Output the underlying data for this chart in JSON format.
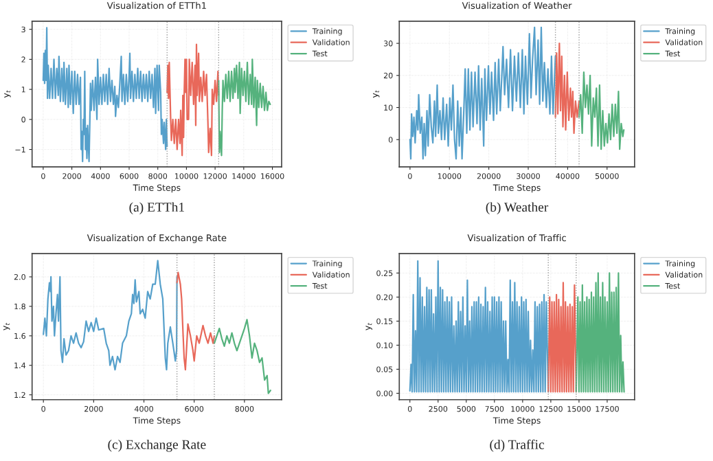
{
  "chart_data": [
    {
      "type": "line",
      "title": "Visualization of ETTh1",
      "xlabel": "Time Steps",
      "ylabel": "y$_{t}$",
      "annotations": [
        "(a) ETTh1"
      ],
      "xlim": [
        -776,
        16646
      ],
      "ylim": [
        -1.58,
        3.27
      ],
      "xticks": [
        0,
        2000,
        4000,
        6000,
        8000,
        10000,
        12000,
        14000,
        16000
      ],
      "yticks": [
        {
          "value": -1,
          "label": "−1"
        },
        0,
        1,
        2,
        3
      ],
      "grid": true,
      "legend": "top right",
      "line_style": "solid",
      "ref_lines": [
        {
          "axis": "x",
          "value": 8650,
          "color": "#999999",
          "line_style": "dotted"
        },
        {
          "axis": "x",
          "value": 12250,
          "color": "#999999",
          "line_style": "dotted"
        }
      ],
      "series": [
        {
          "name": "Training",
          "color": "#56a0cb",
          "x": [
            0,
            50,
            100,
            150,
            200,
            250,
            300,
            350,
            450,
            550,
            650,
            750,
            850,
            950,
            1050,
            1100,
            1200,
            1300,
            1400,
            1450,
            1550,
            1650,
            1750,
            1800,
            1900,
            2000,
            2100,
            2200,
            2300,
            2400,
            2500,
            2600,
            2650,
            2700,
            2750,
            2800,
            2850,
            2900,
            2950,
            3000,
            3050,
            3100,
            3200,
            3250,
            3300,
            3350,
            3450,
            3550,
            3650,
            3750,
            3800,
            3900,
            4000,
            4100,
            4200,
            4300,
            4400,
            4500,
            4600,
            4700,
            4800,
            4900,
            5000,
            5050,
            5150,
            5250,
            5350,
            5450,
            5500,
            5600,
            5700,
            5800,
            5900,
            6000,
            6050,
            6100,
            6200,
            6300,
            6400,
            6500,
            6600,
            6700,
            6800,
            6900,
            7000,
            7100,
            7200,
            7300,
            7400,
            7500,
            7600,
            7700,
            7800,
            7850,
            7950,
            8050,
            8100,
            8200,
            8250,
            8300,
            8400,
            8450,
            8550,
            8600,
            8650
          ],
          "values": [
            1.3,
            2.2,
            1.2,
            2.3,
            1.3,
            3.05,
            0.7,
            1.8,
            0.7,
            1.7,
            0.7,
            2.0,
            0.7,
            1.7,
            0.8,
            2.1,
            0.6,
            1.7,
            0.6,
            1.9,
            0.5,
            1.7,
            0.4,
            1.8,
            0.5,
            1.6,
            0.2,
            1.6,
            0.5,
            1.5,
            0.5,
            1.4,
            -1.0,
            -0.4,
            -1.4,
            0.0,
            -0.5,
            1.6,
            -1.0,
            -0.3,
            -1.3,
            -0.2,
            -1.4,
            -0.2,
            1.2,
            0.3,
            1.3,
            0.3,
            1.4,
            0.0,
            2.0,
            0.5,
            1.4,
            0.5,
            1.5,
            0.6,
            1.5,
            0.5,
            1.7,
            0.6,
            1.3,
            0.5,
            1.1,
            0.1,
            0.8,
            0.4,
            1.2,
            2.1,
            0.6,
            1.5,
            0.5,
            1.5,
            0.6,
            1.5,
            2.2,
            0.7,
            1.6,
            0.6,
            1.5,
            0.7,
            1.7,
            0.7,
            1.6,
            0.6,
            1.5,
            0.7,
            1.5,
            0.6,
            1.6,
            0.7,
            1.5,
            0.4,
            1.7,
            0.2,
            1.8,
            0.3,
            1.8,
            0.9,
            -0.5,
            0.0,
            -0.8,
            -0.1,
            -1.0,
            0.0,
            -0.9
          ]
        },
        {
          "name": "Validation",
          "color": "#e8685a",
          "x": [
            8650,
            8700,
            8750,
            8800,
            8900,
            8950,
            9050,
            9150,
            9250,
            9350,
            9450,
            9550,
            9600,
            9700,
            9750,
            9800,
            9850,
            9900,
            9950,
            10000,
            10050,
            10150,
            10200,
            10300,
            10400,
            10500,
            10600,
            10650,
            10700,
            10750,
            10850,
            10900,
            11000,
            11100,
            11200,
            11300,
            11400,
            11500,
            11550,
            11650,
            11750,
            11800,
            11900,
            12000,
            12100,
            12200,
            12250
          ],
          "values": [
            0.9,
            1.8,
            0.7,
            1.9,
            0.0,
            -0.7,
            0.0,
            -0.8,
            0.0,
            -1.0,
            0.0,
            -0.8,
            0.3,
            -1.2,
            0.8,
            -0.6,
            1.0,
            2.0,
            0.9,
            2.0,
            0.0,
            0.0,
            2.0,
            0.8,
            1.9,
            0.5,
            1.8,
            -0.2,
            2.5,
            0.8,
            2.2,
            0.6,
            1.4,
            0.6,
            1.6,
            0.8,
            1.5,
            -0.1,
            -1.1,
            -0.3,
            -1.2,
            1.0,
            0.5,
            1.3,
            0.6,
            1.6,
            0.8
          ]
        },
        {
          "name": "Test",
          "color": "#55b27d",
          "x": [
            12250,
            12300,
            12350,
            12450,
            12500,
            12550,
            12650,
            12750,
            12850,
            12950,
            13050,
            13150,
            13250,
            13350,
            13400,
            13500,
            13600,
            13700,
            13750,
            13850,
            13950,
            14050,
            14150,
            14250,
            14350,
            14450,
            14550,
            14600,
            14700,
            14800,
            14900,
            14950,
            15050,
            15150,
            15250,
            15350,
            15450,
            15550,
            15650,
            15750,
            15850
          ],
          "values": [
            1.3,
            -1.1,
            -0.4,
            -1.2,
            0.3,
            1.3,
            0.6,
            1.5,
            0.7,
            1.6,
            0.6,
            1.6,
            0.7,
            1.7,
            0.9,
            1.8,
            0.7,
            1.9,
            0.2,
            1.7,
            0.8,
            1.6,
            0.6,
            1.9,
            0.5,
            1.5,
            0.5,
            2.0,
            0.4,
            1.4,
            -0.2,
            1.3,
            0.4,
            1.2,
            0.4,
            1.1,
            0.3,
            0.9,
            0.3,
            0.6,
            0.5
          ]
        }
      ]
    },
    {
      "type": "line",
      "title": "Visualization of Weather",
      "xlabel": "Time Steps",
      "ylabel": "y$_{t}$",
      "annotations": [
        "(b) Weather"
      ],
      "xlim": [
        -2720,
        56980
      ],
      "ylim": [
        -8.5,
        36.9
      ],
      "xticks": [
        0,
        10000,
        20000,
        30000,
        40000,
        50000
      ],
      "yticks": [
        0,
        10,
        20,
        30
      ],
      "grid": true,
      "legend": "top right",
      "line_style": "solid",
      "ref_lines": [
        {
          "axis": "x",
          "value": 36900,
          "color": "#999999",
          "line_style": "dotted"
        },
        {
          "axis": "x",
          "value": 42900,
          "color": "#999999",
          "line_style": "dotted"
        }
      ],
      "series": [
        {
          "name": "Training",
          "color": "#56a0cb",
          "x": [
            0,
            200,
            400,
            700,
            1000,
            1300,
            1700,
            2000,
            2200,
            2600,
            3000,
            3300,
            3600,
            3900,
            4300,
            4600,
            5000,
            5400,
            5800,
            6200,
            6500,
            6900,
            7200,
            7600,
            8000,
            8400,
            8800,
            9300,
            9700,
            10100,
            10500,
            10900,
            11300,
            11700,
            12100,
            12500,
            12900,
            13200,
            13600,
            14000,
            14400,
            14800,
            15200,
            15600,
            16000,
            16500,
            17000,
            17400,
            17800,
            18200,
            18700,
            19000,
            19400,
            19900,
            20300,
            20700,
            21200,
            21600,
            22000,
            22500,
            22900,
            23300,
            23600,
            24000,
            24500,
            25000,
            25500,
            26000,
            26500,
            27000,
            27500,
            28000,
            28500,
            28900,
            29300,
            29800,
            30300,
            30700,
            31100,
            31600,
            32000,
            32500,
            32900,
            33300,
            33700,
            34100,
            34600,
            35000,
            35500,
            35900,
            36300,
            36900
          ],
          "values": [
            0,
            -6,
            8,
            1,
            7,
            -1,
            9,
            3,
            14,
            2,
            7,
            -6,
            5,
            -5,
            9,
            -2,
            14,
            4,
            -1,
            12,
            1,
            17,
            2,
            9,
            0,
            13,
            0,
            11,
            -2,
            13,
            3,
            17,
            0,
            -6,
            12,
            -2,
            10,
            -6,
            7,
            22,
            2,
            22,
            3,
            21,
            4,
            21,
            5,
            23,
            3,
            19,
            -2,
            22,
            6,
            23,
            8,
            21,
            6,
            24,
            8,
            25,
            9,
            20,
            29,
            14,
            25,
            10,
            28,
            9,
            26,
            12,
            27,
            10,
            28,
            8,
            26,
            11,
            33,
            13,
            25,
            35,
            14,
            31,
            11,
            35,
            12,
            24,
            10,
            22,
            8,
            26,
            8,
            26
          ]
        },
        {
          "name": "Validation",
          "color": "#e8685a",
          "x": [
            36900,
            37200,
            37500,
            37900,
            38200,
            38500,
            38800,
            39200,
            39500,
            39900,
            40300,
            40700,
            41000,
            41300,
            41600,
            42000,
            42400,
            42900
          ],
          "values": [
            7,
            27,
            8,
            30,
            9,
            26,
            4,
            20,
            3,
            21,
            6,
            16,
            7,
            15,
            2,
            12,
            7,
            12
          ]
        },
        {
          "name": "Test",
          "color": "#55b27d",
          "x": [
            42900,
            43300,
            43700,
            44100,
            44500,
            44900,
            45300,
            45700,
            46100,
            46500,
            46900,
            47300,
            47700,
            48100,
            48500,
            48900,
            49300,
            49700,
            50100,
            50500,
            50900,
            51300,
            51700,
            52100,
            52500,
            52900,
            53200,
            53600,
            54000,
            54260
          ],
          "values": [
            7,
            14,
            2,
            21,
            10,
            17,
            8,
            20,
            -2,
            13,
            7,
            16,
            -2,
            17,
            -3,
            9,
            -2,
            5,
            -1,
            8,
            0,
            11,
            1,
            11,
            2,
            15,
            -3,
            5,
            1,
            3
          ]
        }
      ]
    },
    {
      "type": "line",
      "title": "Visualization of Exchange Rate",
      "xlabel": "Time Steps",
      "ylabel": "y$_{t}$",
      "annotations": [
        "(c) Exchange Rate"
      ],
      "xlim": [
        -450,
        9479
      ],
      "ylim": [
        1.167,
        2.158
      ],
      "xticks": [
        0,
        2000,
        4000,
        6000,
        8000
      ],
      "yticks": [
        {
          "value": 1.2,
          "label": "1.2"
        },
        {
          "value": 1.4,
          "label": "1.4"
        },
        {
          "value": 1.6,
          "label": "1.6"
        },
        {
          "value": 1.8,
          "label": "1.8"
        },
        {
          "value": 2.0,
          "label": "2.0"
        }
      ],
      "grid": true,
      "legend": "top right",
      "line_style": "solid",
      "ref_lines": [
        {
          "axis": "x",
          "value": 5314,
          "color": "#999999",
          "line_style": "dotted"
        },
        {
          "axis": "x",
          "value": 6800,
          "color": "#999999",
          "line_style": "dotted"
        }
      ],
      "series": [
        {
          "name": "Training",
          "color": "#56a0cb",
          "x": [
            0,
            60,
            120,
            180,
            240,
            280,
            300,
            340,
            400,
            440,
            500,
            560,
            600,
            660,
            700,
            760,
            820,
            900,
            1000,
            1100,
            1200,
            1300,
            1400,
            1500,
            1600,
            1700,
            1800,
            1900,
            2000,
            2100,
            2200,
            2400,
            2500,
            2600,
            2650,
            2750,
            2850,
            2950,
            3050,
            3150,
            3300,
            3400,
            3500,
            3550,
            3600,
            3650,
            3700,
            3800,
            3850,
            3950,
            4050,
            4150,
            4250,
            4350,
            4450,
            4550,
            4650,
            4750,
            4800,
            4850,
            4900,
            4950,
            5050,
            5150,
            5250,
            5300,
            5314
          ],
          "values": [
            1.61,
            1.72,
            1.6,
            1.85,
            1.96,
            1.9,
            2.0,
            1.7,
            1.8,
            1.6,
            1.75,
            1.88,
            1.7,
            2.0,
            1.5,
            1.42,
            1.58,
            1.47,
            1.5,
            1.6,
            1.55,
            1.62,
            1.55,
            1.52,
            1.56,
            1.7,
            1.63,
            1.69,
            1.63,
            1.72,
            1.64,
            1.65,
            1.55,
            1.5,
            1.4,
            1.46,
            1.37,
            1.46,
            1.42,
            1.55,
            1.6,
            1.7,
            1.75,
            1.88,
            1.82,
            1.98,
            1.83,
            1.9,
            1.75,
            1.78,
            1.72,
            1.9,
            1.85,
            1.95,
            1.95,
            2.11,
            1.95,
            1.85,
            1.65,
            1.45,
            1.37,
            1.55,
            1.66,
            1.55,
            1.43,
            1.5,
            2.0
          ]
        },
        {
          "name": "Validation",
          "color": "#e8685a",
          "x": [
            5314,
            5360,
            5450,
            5500,
            5560,
            5600,
            5650,
            5750,
            5850,
            5950,
            6000,
            6100,
            6200,
            6350,
            6450,
            6550,
            6650,
            6750,
            6800
          ],
          "values": [
            1.96,
            2.03,
            1.95,
            1.85,
            1.6,
            1.45,
            1.37,
            1.68,
            1.6,
            1.5,
            1.43,
            1.6,
            1.55,
            1.67,
            1.6,
            1.55,
            1.62,
            1.55,
            1.6
          ]
        },
        {
          "name": "Test",
          "color": "#55b27d",
          "x": [
            6800,
            6900,
            7000,
            7100,
            7200,
            7300,
            7400,
            7500,
            7600,
            7700,
            7800,
            7900,
            8000,
            8100,
            8200,
            8300,
            8400,
            8500,
            8600,
            8700,
            8800,
            8900,
            8950,
            9036
          ],
          "values": [
            1.55,
            1.6,
            1.65,
            1.58,
            1.53,
            1.6,
            1.55,
            1.62,
            1.55,
            1.5,
            1.55,
            1.6,
            1.65,
            1.71,
            1.6,
            1.45,
            1.55,
            1.5,
            1.42,
            1.45,
            1.3,
            1.33,
            1.21,
            1.23
          ]
        }
      ]
    },
    {
      "type": "line",
      "title": "Visualization of Traffic",
      "xlabel": "Time Steps",
      "ylabel": "y$_{t}$",
      "annotations": [
        "(d) Traffic"
      ],
      "xlim": [
        -942,
        19930
      ],
      "ylim": [
        -0.0133,
        0.2905
      ],
      "xticks": [
        0,
        2500,
        5000,
        7500,
        10000,
        12500,
        15000,
        17500
      ],
      "yticks": [
        {
          "value": 0.0,
          "label": "0.00"
        },
        {
          "value": 0.05,
          "label": "0.05"
        },
        {
          "value": 0.1,
          "label": "0.10"
        },
        {
          "value": 0.15,
          "label": "0.15"
        },
        {
          "value": 0.2,
          "label": "0.20"
        },
        {
          "value": 0.25,
          "label": "0.25"
        }
      ],
      "grid": true,
      "legend": "top right",
      "line_style": "solid",
      "ref_lines": [
        {
          "axis": "x",
          "value": 12274,
          "color": "#999999",
          "line_style": "dotted"
        },
        {
          "axis": "x",
          "value": 14750,
          "color": "#999999",
          "line_style": "dotted"
        }
      ],
      "series": [
        {
          "name": "Training",
          "color": "#56a0cb",
          "x": [
            0,
            100,
            200,
            300,
            400,
            500,
            600,
            700,
            800,
            900,
            1000,
            1100,
            1200,
            1300,
            1400,
            1500,
            1600,
            1700,
            1800,
            1900,
            2000,
            2100,
            2200,
            2300,
            2400,
            2500,
            2600,
            2700,
            2800,
            2900,
            3000,
            3100,
            3200,
            3300,
            3400,
            3500,
            3600,
            3700,
            3800,
            3900,
            4000,
            4100,
            4200,
            4300,
            4400,
            4500,
            4600,
            4700,
            4800,
            4900,
            5000,
            5100,
            5200,
            5300,
            5400,
            5500,
            5600,
            5700,
            5800,
            5900,
            6000,
            6100,
            6200,
            6300,
            6400,
            6500,
            6600,
            6700,
            6800,
            6900,
            7000,
            7100,
            7200,
            7300,
            7400,
            7500,
            7600,
            7700,
            7800,
            7900,
            8000,
            8100,
            8200,
            8300,
            8400,
            8500,
            8600,
            8700,
            8800,
            8900,
            9000,
            9100,
            9200,
            9300,
            9400,
            9500,
            9600,
            9700,
            9800,
            9900,
            10000,
            10100,
            10200,
            10300,
            10400,
            10500,
            10600,
            10700,
            10800,
            10900,
            11000,
            11100,
            11200,
            11300,
            11400,
            11500,
            11600,
            11700,
            11800,
            11900,
            12000,
            12100,
            12274
          ],
          "values": [
            0.005,
            0.06,
            0.003,
            0.205,
            0.003,
            0.13,
            0.003,
            0.275,
            0.003,
            0.24,
            0.003,
            0.2,
            0.003,
            0.18,
            0.003,
            0.22,
            0.003,
            0.215,
            0.003,
            0.215,
            0.003,
            0.165,
            0.003,
            0.2,
            0.003,
            0.275,
            0.003,
            0.22,
            0.003,
            0.215,
            0.003,
            0.19,
            0.003,
            0.2,
            0.003,
            0.19,
            0.003,
            0.2,
            0.003,
            0.14,
            0.003,
            0.15,
            0.003,
            0.19,
            0.003,
            0.17,
            0.003,
            0.2,
            0.003,
            0.14,
            0.003,
            0.235,
            0.003,
            0.15,
            0.003,
            0.18,
            0.003,
            0.19,
            0.003,
            0.19,
            0.003,
            0.2,
            0.003,
            0.185,
            0.003,
            0.18,
            0.003,
            0.22,
            0.003,
            0.19,
            0.003,
            0.17,
            0.003,
            0.2,
            0.003,
            0.2,
            0.003,
            0.19,
            0.003,
            0.2,
            0.003,
            0.19,
            0.003,
            0.15,
            0.003,
            0.15,
            0.003,
            0.07,
            0.003,
            0.235,
            0.003,
            0.19,
            0.003,
            0.23,
            0.003,
            0.19,
            0.003,
            0.18,
            0.003,
            0.2,
            0.003,
            0.19,
            0.003,
            0.195,
            0.003,
            0.17,
            0.003,
            0.11,
            0.003,
            0.09,
            0.003,
            0.19,
            0.003,
            0.18,
            0.003,
            0.185,
            0.003,
            0.19,
            0.003,
            0.205,
            0.003,
            0.19,
            0.003
          ]
        },
        {
          "name": "Validation",
          "color": "#e8685a",
          "x": [
            12274,
            12400,
            12500,
            12600,
            12700,
            12800,
            12900,
            13000,
            13100,
            13200,
            13300,
            13400,
            13500,
            13600,
            13700,
            13800,
            13900,
            14000,
            14100,
            14200,
            14300,
            14400,
            14500,
            14600,
            14750
          ],
          "values": [
            0.003,
            0.2,
            0.003,
            0.19,
            0.003,
            0.19,
            0.003,
            0.205,
            0.003,
            0.195,
            0.003,
            0.18,
            0.003,
            0.23,
            0.003,
            0.19,
            0.003,
            0.18,
            0.003,
            0.185,
            0.003,
            0.18,
            0.003,
            0.225,
            0.003
          ]
        },
        {
          "name": "Test",
          "color": "#55b27d",
          "x": [
            14750,
            14900,
            15000,
            15100,
            15200,
            15300,
            15400,
            15500,
            15600,
            15700,
            15800,
            15900,
            16000,
            16100,
            16200,
            16300,
            16400,
            16500,
            16600,
            16700,
            16800,
            16900,
            17000,
            17100,
            17200,
            17300,
            17400,
            17500,
            17600,
            17700,
            17800,
            17900,
            18000,
            18100,
            18200,
            18300,
            18400,
            18500,
            18600,
            18700,
            18800,
            18900,
            19000
          ],
          "values": [
            0.003,
            0.2,
            0.003,
            0.19,
            0.003,
            0.225,
            0.003,
            0.19,
            0.003,
            0.2,
            0.003,
            0.195,
            0.003,
            0.21,
            0.003,
            0.2,
            0.003,
            0.23,
            0.003,
            0.25,
            0.003,
            0.2,
            0.003,
            0.23,
            0.003,
            0.2,
            0.003,
            0.19,
            0.003,
            0.25,
            0.003,
            0.21,
            0.003,
            0.21,
            0.003,
            0.22,
            0.003,
            0.25,
            0.003,
            0.12,
            0.003,
            0.065,
            0.003
          ]
        }
      ]
    }
  ]
}
